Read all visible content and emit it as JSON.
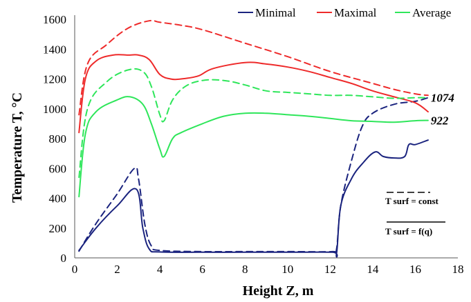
{
  "chart_data": {
    "type": "line",
    "xlabel": "Height Z, m",
    "ylabel": "Temperature T, °C",
    "xlim": [
      0,
      18
    ],
    "ylim": [
      0,
      1600
    ],
    "xticks": [
      "0",
      "2",
      "4",
      "6",
      "8",
      "10",
      "12",
      "14",
      "16",
      "18"
    ],
    "yticks": [
      "0",
      "200",
      "400",
      "600",
      "800",
      "1000",
      "1200",
      "1400",
      "1600"
    ],
    "grid": false,
    "legend_position": "top",
    "legend": [
      {
        "label": "Minimal",
        "color": "#1a237e"
      },
      {
        "label": "Maximal",
        "color": "#ee2a2a"
      },
      {
        "label": "Average",
        "color": "#2ee65a"
      }
    ],
    "line_styles": [
      {
        "label": "T surf = const",
        "style": "dashed"
      },
      {
        "label": "T surf = f(q)",
        "style": "solid"
      }
    ],
    "annotations": [
      {
        "text": "1074",
        "x": 16.6,
        "y": 1074
      },
      {
        "text": "922",
        "x": 16.6,
        "y": 922
      }
    ],
    "series": [
      {
        "role": "minimal",
        "style": "solid",
        "color": "#1a237e",
        "points": [
          [
            0.2,
            50
          ],
          [
            1,
            200
          ],
          [
            2,
            350
          ],
          [
            2.9,
            460
          ],
          [
            3.2,
            200
          ],
          [
            3.5,
            60
          ],
          [
            4,
            40
          ],
          [
            6,
            38
          ],
          [
            8,
            38
          ],
          [
            10,
            38
          ],
          [
            12.1,
            38
          ],
          [
            12.3,
            30
          ],
          [
            12.5,
            350
          ],
          [
            13,
            530
          ],
          [
            13.5,
            630
          ],
          [
            14.1,
            710
          ],
          [
            14.5,
            680
          ],
          [
            15,
            670
          ],
          [
            15.5,
            680
          ],
          [
            15.7,
            760
          ],
          [
            16,
            760
          ],
          [
            16.6,
            790
          ]
        ]
      },
      {
        "role": "minimal",
        "style": "dashed",
        "color": "#1a237e",
        "points": [
          [
            0.2,
            45
          ],
          [
            1,
            230
          ],
          [
            2,
            430
          ],
          [
            2.8,
            600
          ],
          [
            3,
            530
          ],
          [
            3.3,
            220
          ],
          [
            3.6,
            80
          ],
          [
            4,
            50
          ],
          [
            6,
            42
          ],
          [
            8,
            42
          ],
          [
            10,
            42
          ],
          [
            12.1,
            42
          ],
          [
            12.3,
            60
          ],
          [
            12.5,
            350
          ],
          [
            13,
            650
          ],
          [
            13.5,
            880
          ],
          [
            14,
            970
          ],
          [
            15,
            1030
          ],
          [
            16,
            1050
          ],
          [
            16.6,
            1074
          ]
        ]
      },
      {
        "role": "maximal",
        "style": "solid",
        "color": "#ee2a2a",
        "points": [
          [
            0.2,
            840
          ],
          [
            0.5,
            1200
          ],
          [
            1,
            1320
          ],
          [
            1.8,
            1360
          ],
          [
            2.5,
            1360
          ],
          [
            3,
            1360
          ],
          [
            3.5,
            1330
          ],
          [
            4,
            1230
          ],
          [
            4.5,
            1200
          ],
          [
            5,
            1200
          ],
          [
            5.8,
            1220
          ],
          [
            6.5,
            1270
          ],
          [
            8,
            1310
          ],
          [
            9,
            1300
          ],
          [
            10,
            1280
          ],
          [
            11,
            1250
          ],
          [
            12,
            1210
          ],
          [
            13,
            1170
          ],
          [
            14,
            1120
          ],
          [
            15,
            1080
          ],
          [
            16,
            1040
          ],
          [
            16.6,
            980
          ]
        ]
      },
      {
        "role": "maximal",
        "style": "dashed",
        "color": "#ee2a2a",
        "points": [
          [
            0.2,
            960
          ],
          [
            0.6,
            1300
          ],
          [
            1.5,
            1430
          ],
          [
            2.5,
            1540
          ],
          [
            3.5,
            1590
          ],
          [
            4,
            1580
          ],
          [
            5,
            1560
          ],
          [
            6,
            1530
          ],
          [
            8,
            1440
          ],
          [
            10,
            1350
          ],
          [
            12,
            1250
          ],
          [
            14,
            1170
          ],
          [
            15,
            1130
          ],
          [
            16,
            1100
          ],
          [
            16.6,
            1090
          ]
        ]
      },
      {
        "role": "average",
        "style": "solid",
        "color": "#2ee65a",
        "points": [
          [
            0.2,
            410
          ],
          [
            0.5,
            830
          ],
          [
            1,
            980
          ],
          [
            2,
            1060
          ],
          [
            2.6,
            1080
          ],
          [
            3.2,
            1030
          ],
          [
            3.6,
            900
          ],
          [
            4,
            730
          ],
          [
            4.2,
            680
          ],
          [
            4.6,
            800
          ],
          [
            5,
            840
          ],
          [
            6,
            900
          ],
          [
            7,
            950
          ],
          [
            8,
            970
          ],
          [
            9,
            970
          ],
          [
            10,
            960
          ],
          [
            11,
            950
          ],
          [
            12,
            935
          ],
          [
            13,
            920
          ],
          [
            14,
            915
          ],
          [
            15,
            910
          ],
          [
            16,
            920
          ],
          [
            16.6,
            922
          ]
        ]
      },
      {
        "role": "average",
        "style": "dashed",
        "color": "#2ee65a",
        "points": [
          [
            0.2,
            540
          ],
          [
            0.6,
            1000
          ],
          [
            1.5,
            1180
          ],
          [
            2.5,
            1260
          ],
          [
            3.2,
            1250
          ],
          [
            3.6,
            1150
          ],
          [
            4,
            960
          ],
          [
            4.2,
            920
          ],
          [
            4.6,
            1060
          ],
          [
            5.2,
            1150
          ],
          [
            6,
            1190
          ],
          [
            7,
            1190
          ],
          [
            8,
            1160
          ],
          [
            9,
            1120
          ],
          [
            10,
            1110
          ],
          [
            11,
            1100
          ],
          [
            12,
            1090
          ],
          [
            13,
            1090
          ],
          [
            14,
            1080
          ],
          [
            15,
            1070
          ],
          [
            16,
            1074
          ],
          [
            16.6,
            1074
          ]
        ]
      }
    ]
  }
}
